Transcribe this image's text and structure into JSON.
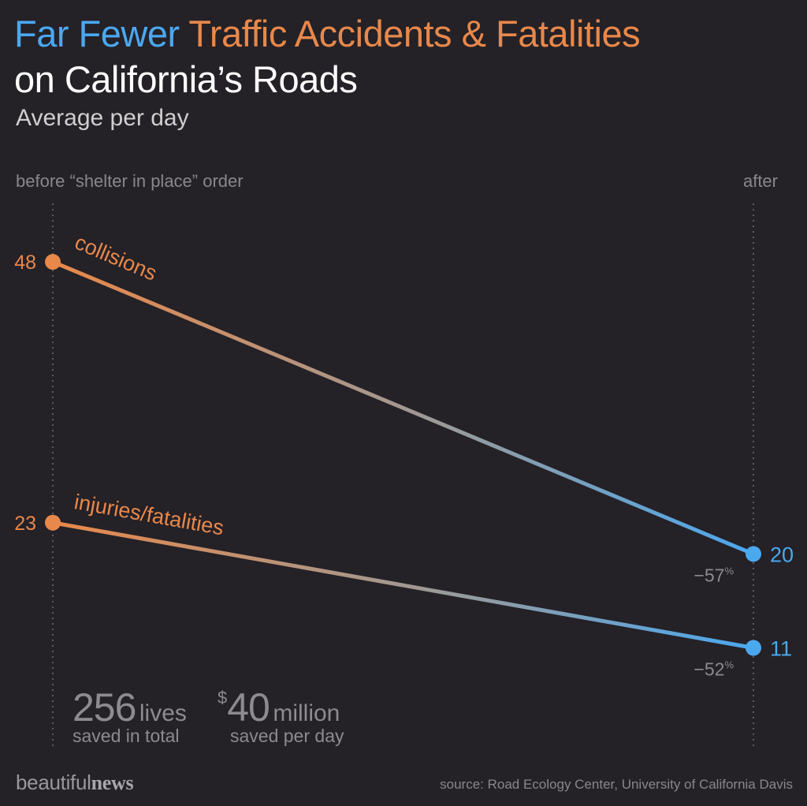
{
  "header": {
    "title_part1": "Far Fewer",
    "title_part2": "Traffic Accidents & Fatalities",
    "title_line2": "on California’s Roads",
    "subtitle": "Average per day",
    "before_label": "before “shelter in place” order",
    "after_label": "after"
  },
  "chart_data": {
    "type": "line",
    "title": "Far Fewer Traffic Accidents & Fatalities on California’s Roads",
    "subtitle": "Average per day",
    "categories": [
      "before “shelter in place” order",
      "after"
    ],
    "series": [
      {
        "name": "collisions",
        "values": [
          48,
          20
        ],
        "change_label": "−57",
        "change_unit": "%"
      },
      {
        "name": "injuries/fatalities",
        "values": [
          23,
          11
        ],
        "change_label": "−52",
        "change_unit": "%"
      }
    ],
    "ylim": [
      0,
      50
    ],
    "grid": false,
    "colors": {
      "before": "#e8884a",
      "after": "#4aa8ef"
    }
  },
  "stats": {
    "lives_value": "256",
    "lives_unit": "lives",
    "lives_caption": "saved in total",
    "money_symbol": "$",
    "money_value": "40",
    "money_unit": "million",
    "money_caption": "saved per day"
  },
  "footer": {
    "brand_light": "beautiful",
    "brand_bold": "news",
    "source": "source: Road Ecology Center, University of California Davis"
  }
}
